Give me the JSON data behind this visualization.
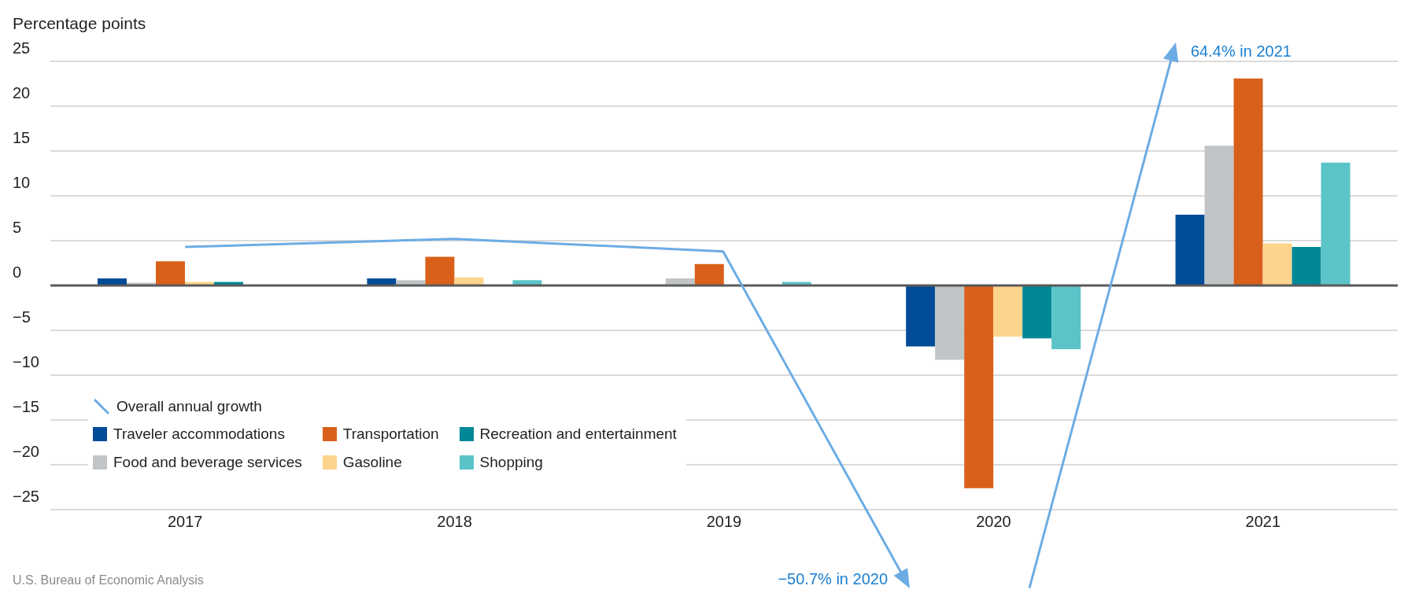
{
  "chart_data": {
    "type": "bar",
    "ylabel": "Percentage points",
    "categories": [
      "2017",
      "2018",
      "2019",
      "2020",
      "2021"
    ],
    "series": [
      {
        "name": "Overall annual growth",
        "type": "line",
        "color": "#6cace4",
        "values": [
          4.3,
          5.2,
          3.8,
          null,
          null
        ]
      },
      {
        "name": "Traveler accommodations",
        "color": "#004c97",
        "values": [
          0.8,
          0.8,
          null,
          -6.8,
          7.9
        ]
      },
      {
        "name": "Food and beverage services",
        "color": "#c1c5c8",
        "values": [
          0.3,
          0.6,
          0.8,
          -8.3,
          15.6
        ]
      },
      {
        "name": "Transportation",
        "color": "#d9601a",
        "values": [
          2.7,
          3.2,
          2.4,
          -22.6,
          23.1
        ]
      },
      {
        "name": "Gasoline",
        "color": "#fdd48c",
        "values": [
          0.4,
          0.9,
          null,
          -5.7,
          4.7
        ]
      },
      {
        "name": "Recreation and entertainment",
        "color": "#008896",
        "values": [
          0.4,
          null,
          null,
          -5.9,
          4.3
        ]
      },
      {
        "name": "Shopping",
        "color": "#5bc4c9",
        "values": [
          null,
          0.6,
          0.4,
          -7.1,
          13.7
        ]
      }
    ],
    "ylim": [
      -25,
      25
    ],
    "yticks": [
      {
        "value": -25,
        "label": "−25"
      },
      {
        "value": -20,
        "label": "−20"
      },
      {
        "value": -15,
        "label": "−15"
      },
      {
        "value": -10,
        "label": "−10"
      },
      {
        "value": -5,
        "label": "−5"
      },
      0,
      5,
      10,
      15,
      20,
      25
    ],
    "grid": "y",
    "ref_lines": [
      {
        "axis": "y",
        "value": 0,
        "color": "#5a5a5a"
      }
    ],
    "legend": "bottom left",
    "marker": "none",
    "line_style": "solid",
    "annotations": [
      "−50.7% in 2020",
      "64.4% in 2021",
      "U.S. Bureau of Economic Analysis"
    ]
  }
}
